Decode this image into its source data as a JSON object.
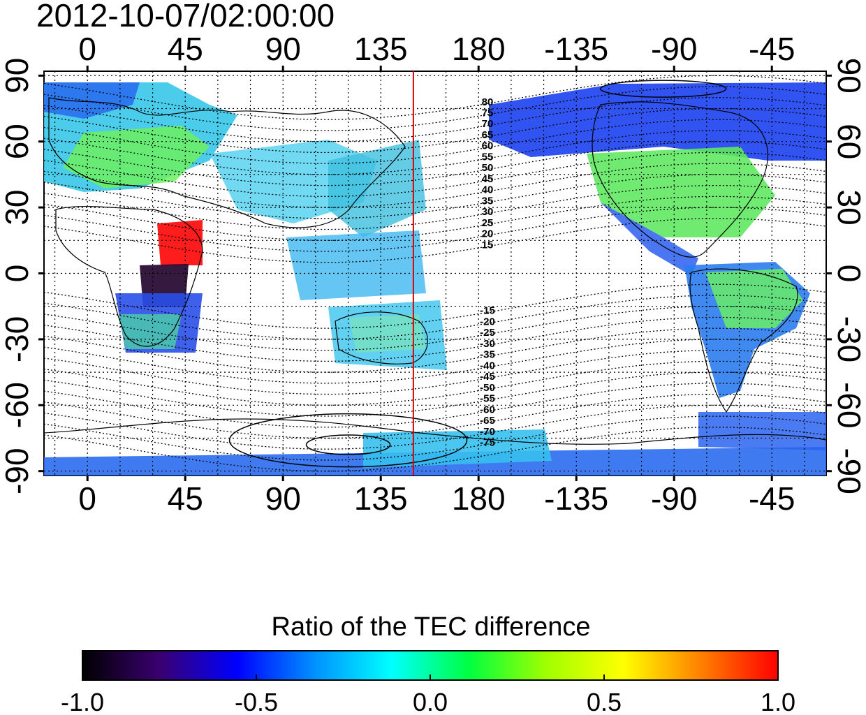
{
  "header": {
    "timestamp": "2012-10-07/02:00:00"
  },
  "map": {
    "longitude_labels": [
      "0",
      "45",
      "90",
      "135",
      "180",
      "-135",
      "-90",
      "-45"
    ],
    "longitude_values": [
      0,
      45,
      90,
      135,
      180,
      225,
      270,
      315
    ],
    "latitude_labels": [
      "90",
      "60",
      "30",
      "0",
      "-30",
      "-60",
      "-90"
    ],
    "latitude_values": [
      90,
      60,
      30,
      0,
      -30,
      -60,
      -90
    ],
    "lon_range_east": [
      -20,
      340
    ],
    "lat_range": [
      -92,
      92
    ],
    "marker_line_longitude": 150,
    "marker_line_color": "#e00000",
    "contour_labels_north": [
      "80",
      "75",
      "70",
      "65",
      "60",
      "55",
      "50",
      "45",
      "40",
      "35",
      "30",
      "25",
      "20",
      "15"
    ],
    "contour_labels_south": [
      "-15",
      "-20",
      "-25",
      "-30",
      "-35",
      "-40",
      "-45",
      "-50",
      "-55",
      "-60",
      "-65",
      "-70",
      "-75"
    ]
  },
  "colorbar": {
    "title": "Ratio of the TEC difference",
    "tick_labels": [
      "-1.0",
      "-0.5",
      "0.0",
      "0.5",
      "1.0"
    ],
    "range": [
      -1.0,
      1.0
    ],
    "colors": [
      "#000000",
      "#3a0070",
      "#0000ff",
      "#0090ff",
      "#00ffff",
      "#00ff40",
      "#a0ff00",
      "#ffff00",
      "#ff8000",
      "#ff0000"
    ]
  }
}
